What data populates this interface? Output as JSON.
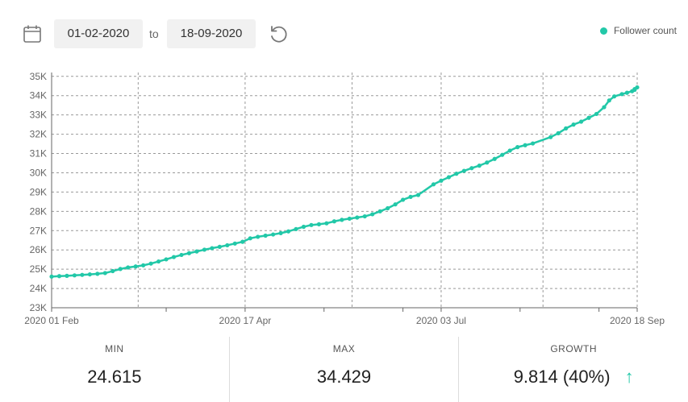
{
  "toolbar": {
    "calendar_icon": "calendar-icon",
    "date_from": "01-02-2020",
    "to_label": "to",
    "date_to": "18-09-2020",
    "reset_icon": "reset-icon"
  },
  "legend": {
    "label": "Follower count",
    "color": "#22c8a8"
  },
  "chart_data": {
    "type": "line",
    "title": "",
    "xlabel": "",
    "ylabel": "",
    "x_tick_labels": [
      "2020 01 Feb",
      "2020 17 Apr",
      "2020 03 Jul",
      "2020 18 Sep"
    ],
    "y_tick_labels": [
      "23K",
      "24K",
      "25K",
      "26K",
      "27K",
      "28K",
      "29K",
      "30K",
      "31K",
      "32K",
      "33K",
      "34K",
      "35K"
    ],
    "ylim": [
      23000,
      35200
    ],
    "grid": true,
    "legend_position": "top-right",
    "series": [
      {
        "name": "Follower count",
        "color": "#22c8a8",
        "points": [
          [
            "2020-02-01",
            24615
          ],
          [
            "2020-02-04",
            24640
          ],
          [
            "2020-02-07",
            24655
          ],
          [
            "2020-02-10",
            24680
          ],
          [
            "2020-02-13",
            24705
          ],
          [
            "2020-02-16",
            24730
          ],
          [
            "2020-02-19",
            24760
          ],
          [
            "2020-02-22",
            24800
          ],
          [
            "2020-02-25",
            24900
          ],
          [
            "2020-02-28",
            25010
          ],
          [
            "2020-03-02",
            25090
          ],
          [
            "2020-03-05",
            25140
          ],
          [
            "2020-03-08",
            25200
          ],
          [
            "2020-03-11",
            25290
          ],
          [
            "2020-03-14",
            25400
          ],
          [
            "2020-03-17",
            25510
          ],
          [
            "2020-03-20",
            25630
          ],
          [
            "2020-03-23",
            25740
          ],
          [
            "2020-03-26",
            25830
          ],
          [
            "2020-03-29",
            25920
          ],
          [
            "2020-04-01",
            26010
          ],
          [
            "2020-04-04",
            26090
          ],
          [
            "2020-04-07",
            26160
          ],
          [
            "2020-04-10",
            26240
          ],
          [
            "2020-04-13",
            26330
          ],
          [
            "2020-04-16",
            26420
          ],
          [
            "2020-04-19",
            26600
          ],
          [
            "2020-04-22",
            26680
          ],
          [
            "2020-04-25",
            26740
          ],
          [
            "2020-04-28",
            26800
          ],
          [
            "2020-05-01",
            26870
          ],
          [
            "2020-05-04",
            26960
          ],
          [
            "2020-05-07",
            27080
          ],
          [
            "2020-05-10",
            27200
          ],
          [
            "2020-05-13",
            27290
          ],
          [
            "2020-05-16",
            27330
          ],
          [
            "2020-05-19",
            27380
          ],
          [
            "2020-05-22",
            27480
          ],
          [
            "2020-05-25",
            27560
          ],
          [
            "2020-05-28",
            27620
          ],
          [
            "2020-05-31",
            27680
          ],
          [
            "2020-06-03",
            27740
          ],
          [
            "2020-06-06",
            27850
          ],
          [
            "2020-06-09",
            28000
          ],
          [
            "2020-06-12",
            28160
          ],
          [
            "2020-06-15",
            28360
          ],
          [
            "2020-06-18",
            28600
          ],
          [
            "2020-06-21",
            28750
          ],
          [
            "2020-06-24",
            28850
          ],
          [
            "2020-06-30",
            29400
          ],
          [
            "2020-07-03",
            29590
          ],
          [
            "2020-07-06",
            29770
          ],
          [
            "2020-07-09",
            29950
          ],
          [
            "2020-07-12",
            30100
          ],
          [
            "2020-07-15",
            30240
          ],
          [
            "2020-07-18",
            30370
          ],
          [
            "2020-07-21",
            30530
          ],
          [
            "2020-07-24",
            30720
          ],
          [
            "2020-07-27",
            30930
          ],
          [
            "2020-07-30",
            31150
          ],
          [
            "2020-08-02",
            31330
          ],
          [
            "2020-08-05",
            31430
          ],
          [
            "2020-08-08",
            31520
          ],
          [
            "2020-08-15",
            31850
          ],
          [
            "2020-08-18",
            32050
          ],
          [
            "2020-08-21",
            32300
          ],
          [
            "2020-08-24",
            32500
          ],
          [
            "2020-08-27",
            32650
          ],
          [
            "2020-08-30",
            32850
          ],
          [
            "2020-09-02",
            33050
          ],
          [
            "2020-09-05",
            33400
          ],
          [
            "2020-09-07",
            33750
          ],
          [
            "2020-09-09",
            33960
          ],
          [
            "2020-09-12",
            34080
          ],
          [
            "2020-09-14",
            34150
          ],
          [
            "2020-09-16",
            34230
          ],
          [
            "2020-09-17",
            34300
          ],
          [
            "2020-09-17",
            34340
          ],
          [
            "2020-09-18",
            34429
          ]
        ]
      }
    ]
  },
  "stats": {
    "min_label": "MIN",
    "min_value": "24.615",
    "max_label": "MAX",
    "max_value": "34.429",
    "growth_label": "GROWTH",
    "growth_value": "9.814 (40%)",
    "growth_icon": "arrow-up-icon",
    "growth_icon_char": "↑"
  }
}
